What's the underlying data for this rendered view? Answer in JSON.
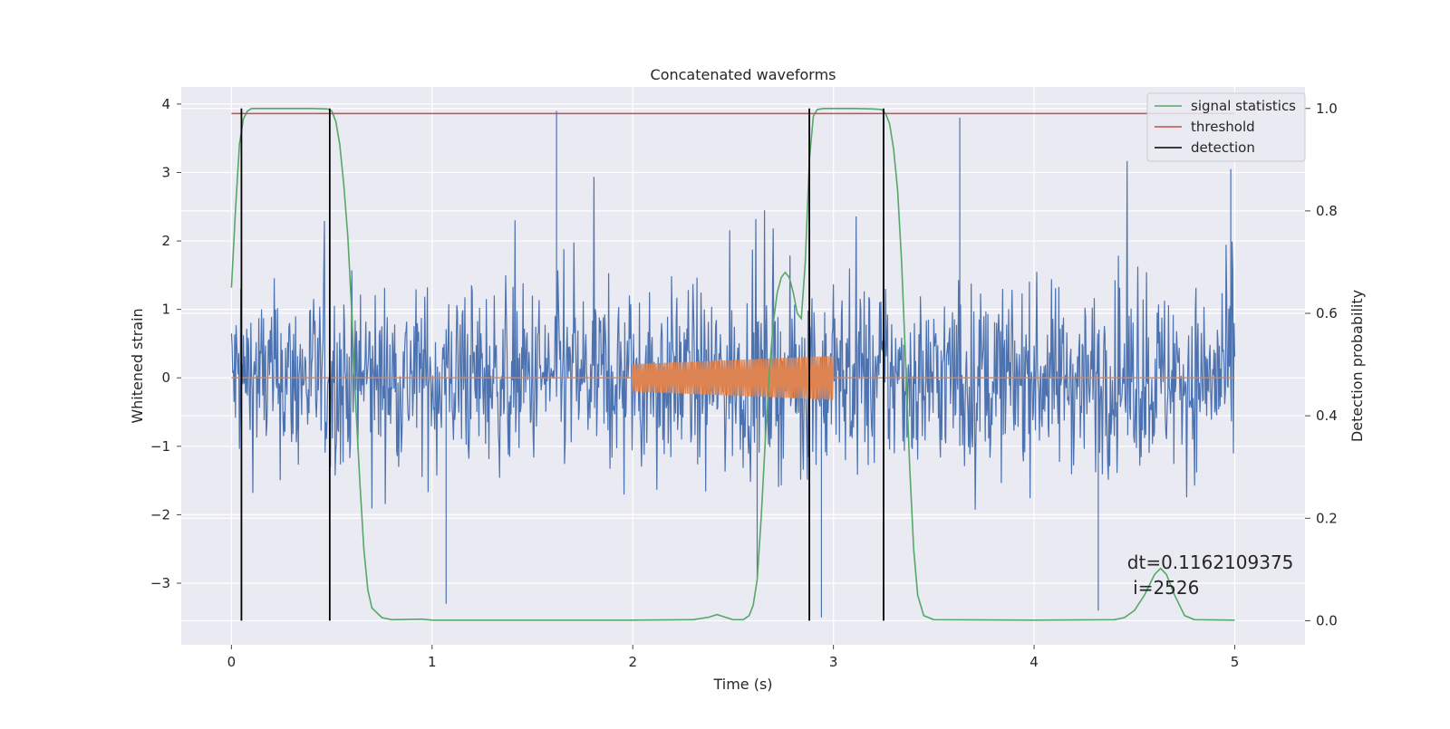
{
  "chart_data": {
    "type": "line",
    "title": "Concatenated waveforms",
    "xlabel": "Time (s)",
    "ylabel": "Whitened strain",
    "ylabel_right": "Detection probability",
    "xlim": [
      -0.25,
      5.35
    ],
    "ylim": [
      -3.9,
      4.25
    ],
    "ylim_right": [
      -0.047,
      1.042
    ],
    "xticks": [
      0,
      1,
      2,
      3,
      4,
      5
    ],
    "xtick_labels": [
      "0",
      "1",
      "2",
      "3",
      "4",
      "5"
    ],
    "yticks": [
      -3,
      -2,
      -1,
      0,
      1,
      2,
      3,
      4
    ],
    "ytick_labels": [
      "−3",
      "−2",
      "−1",
      "0",
      "1",
      "2",
      "3",
      "4"
    ],
    "yticks_right": [
      0.0,
      0.2,
      0.4,
      0.6,
      0.8,
      1.0
    ],
    "ytick_labels_right": [
      "0.0",
      "0.2",
      "0.4",
      "0.6",
      "0.8",
      "1.0"
    ],
    "grid": true,
    "legend_position": "upper right",
    "legend": [
      {
        "label": "signal statistics",
        "color": "#55a868"
      },
      {
        "label": "threshold",
        "color": "#c44e52"
      },
      {
        "label": "detection",
        "color": "#000000"
      }
    ],
    "colors": {
      "strain": "#4c72b0",
      "injection": "#dd8452",
      "signal_statistics": "#55a868",
      "threshold": "#c44e52",
      "detection": "#000000",
      "axes_bg": "#eaeaf2",
      "grid": "#ffffff"
    },
    "strain": {
      "x_start": 0.0,
      "x_end": 5.0,
      "approx_range": [
        -3.5,
        3.9
      ],
      "representative_peaks": [
        {
          "x": 1.62,
          "y": 3.9
        },
        {
          "x": 3.63,
          "y": 3.8
        },
        {
          "x": 2.62,
          "y": -2.9
        },
        {
          "x": 2.94,
          "y": -3.5
        },
        {
          "x": 1.07,
          "y": -3.3
        },
        {
          "x": 4.32,
          "y": -3.4
        },
        {
          "x": 4.98,
          "y": 3.05
        }
      ]
    },
    "injection": {
      "baseline_y": 0.0,
      "chirp_start_x": 2.0,
      "chirp_end_x": 3.0,
      "amplitude_start": 0.2,
      "amplitude_end": 0.32
    },
    "signal_statistics": {
      "x": [
        0.0,
        0.02,
        0.04,
        0.06,
        0.08,
        0.1,
        0.2,
        0.3,
        0.4,
        0.48,
        0.5,
        0.52,
        0.54,
        0.56,
        0.58,
        0.6,
        0.62,
        0.64,
        0.66,
        0.68,
        0.7,
        0.75,
        0.8,
        0.95,
        1.0,
        1.5,
        2.0,
        2.3,
        2.38,
        2.42,
        2.46,
        2.5,
        2.55,
        2.58,
        2.6,
        2.62,
        2.64,
        2.66,
        2.68,
        2.7,
        2.72,
        2.74,
        2.76,
        2.78,
        2.8,
        2.82,
        2.84,
        2.86,
        2.88,
        2.9,
        2.92,
        2.95,
        3.0,
        3.1,
        3.2,
        3.24,
        3.26,
        3.28,
        3.3,
        3.32,
        3.34,
        3.36,
        3.38,
        3.4,
        3.42,
        3.45,
        3.5,
        4.0,
        4.4,
        4.45,
        4.5,
        4.55,
        4.6,
        4.63,
        4.66,
        4.7,
        4.75,
        4.8,
        5.0
      ],
      "y": [
        0.65,
        0.8,
        0.93,
        0.98,
        0.995,
        1.0,
        1.0,
        1.0,
        1.0,
        0.999,
        0.995,
        0.975,
        0.93,
        0.85,
        0.75,
        0.6,
        0.42,
        0.27,
        0.14,
        0.06,
        0.025,
        0.006,
        0.002,
        0.003,
        0.001,
        0.001,
        0.001,
        0.002,
        0.007,
        0.012,
        0.007,
        0.002,
        0.002,
        0.01,
        0.03,
        0.08,
        0.2,
        0.35,
        0.48,
        0.58,
        0.64,
        0.67,
        0.68,
        0.67,
        0.64,
        0.6,
        0.59,
        0.7,
        0.9,
        0.985,
        0.998,
        1.0,
        1.0,
        1.0,
        0.999,
        0.998,
        0.99,
        0.97,
        0.92,
        0.84,
        0.7,
        0.5,
        0.3,
        0.14,
        0.05,
        0.01,
        0.002,
        0.001,
        0.002,
        0.006,
        0.02,
        0.05,
        0.09,
        0.102,
        0.09,
        0.05,
        0.01,
        0.002,
        0.001
      ]
    },
    "threshold": {
      "y": 0.99,
      "x_start": 0.0,
      "x_end": 5.0
    },
    "detections": [
      {
        "x": 0.05,
        "y_bottom": 0.0,
        "y_top": 1.0
      },
      {
        "x": 0.49,
        "y_bottom": 0.0,
        "y_top": 1.0
      },
      {
        "x": 2.88,
        "y_bottom": 0.0,
        "y_top": 1.0
      },
      {
        "x": 3.25,
        "y_bottom": 0.0,
        "y_top": 1.0
      }
    ],
    "annotation": {
      "line1": "dt=0.1162109375",
      "line2": " i=2526",
      "x": 4.5,
      "y_right": 0.11
    }
  }
}
